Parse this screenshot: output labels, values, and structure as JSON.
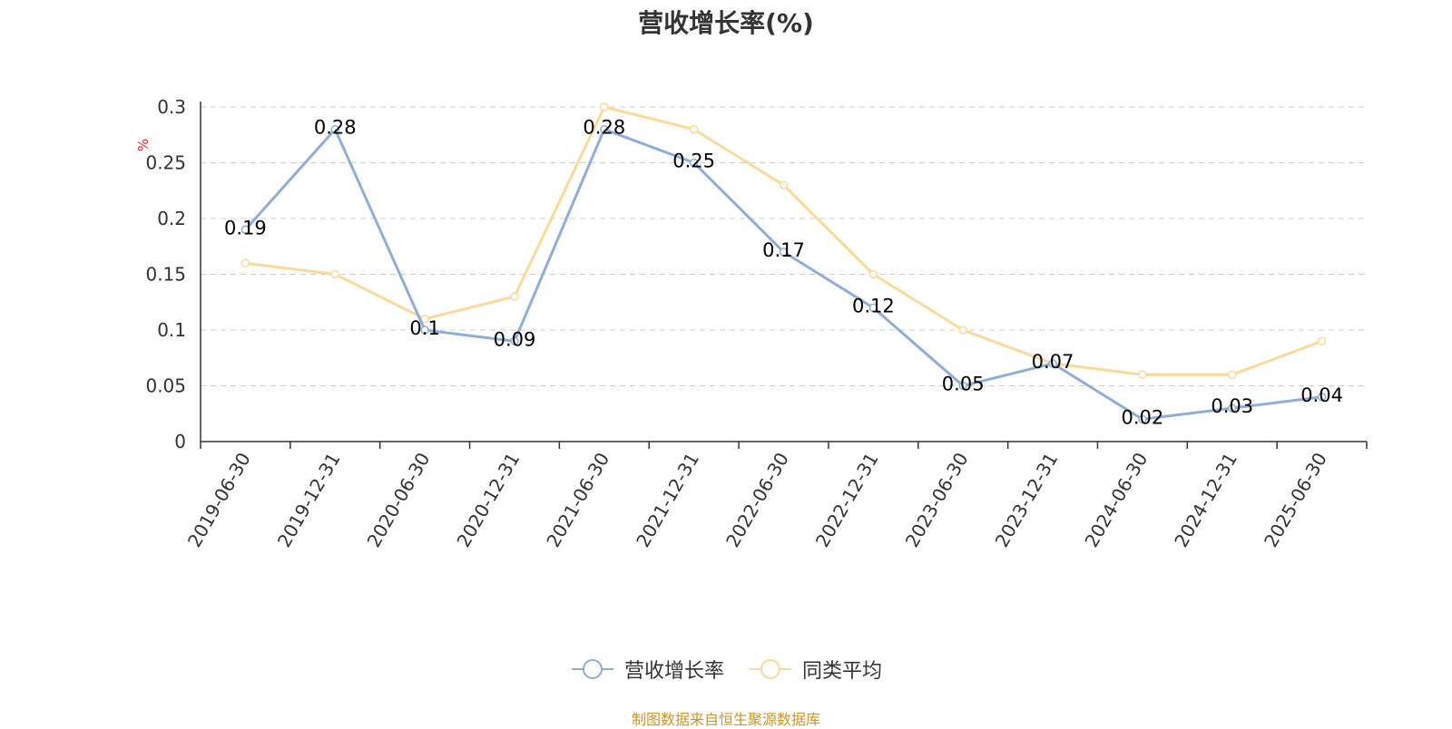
{
  "title": "营收增长率(%)",
  "source_text": "制图数据来自恒生聚源数据库",
  "colors": {
    "series1": "#8eaed8",
    "series2": "#fcd99a",
    "axis": "#333333",
    "grid": "#cccccc",
    "unit_label": "#e02020",
    "source": "#c8962a"
  },
  "chart_data": {
    "type": "line",
    "title": "营收增长率(%)",
    "ylabel": "%",
    "xlabel": "",
    "ylim": [
      0,
      0.3
    ],
    "yticks": [
      "0",
      "0.05",
      "0.1",
      "0.15",
      "0.2",
      "0.25",
      "0.3"
    ],
    "grid": true,
    "legend_position": "bottom",
    "categories": [
      "2019-06-30",
      "2019-12-31",
      "2020-06-30",
      "2020-12-31",
      "2021-06-30",
      "2021-12-31",
      "2022-06-30",
      "2022-12-31",
      "2023-06-30",
      "2023-12-31",
      "2024-06-30",
      "2024-12-31",
      "2025-06-30"
    ],
    "series": [
      {
        "name": "营收增长率",
        "values": [
          0.19,
          0.28,
          0.1,
          0.09,
          0.28,
          0.25,
          0.17,
          0.12,
          0.05,
          0.07,
          0.02,
          0.03,
          0.04
        ],
        "labels": [
          "0.19",
          "0.28",
          "0.1",
          "0.09",
          "0.28",
          "0.25",
          "0.17",
          "0.12",
          "0.05",
          "0.07",
          "0.02",
          "0.03",
          "0.04"
        ]
      },
      {
        "name": "同类平均",
        "values": [
          0.16,
          0.15,
          0.11,
          0.13,
          0.3,
          0.28,
          0.23,
          0.15,
          0.1,
          0.07,
          0.06,
          0.06,
          0.09
        ]
      }
    ]
  }
}
